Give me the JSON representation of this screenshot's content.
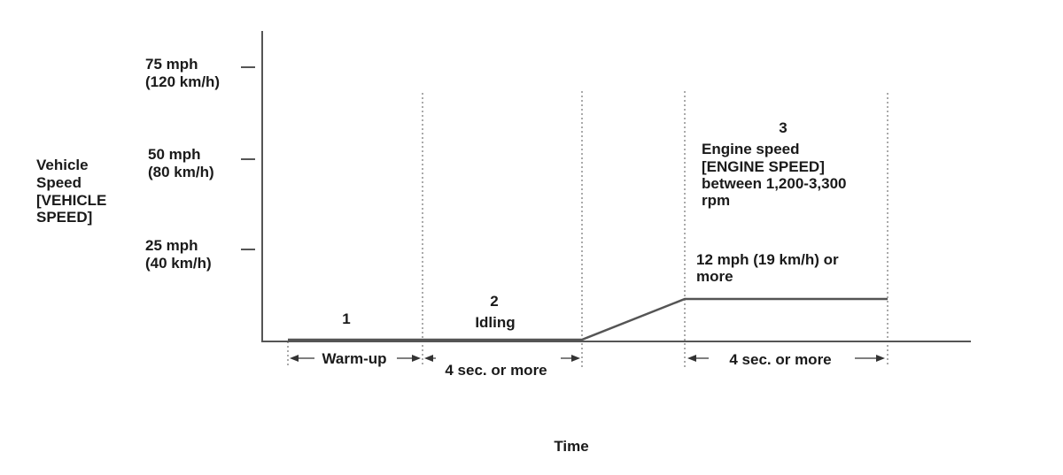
{
  "y_axis": {
    "label_lines": [
      "Vehicle",
      "Speed",
      "[VEHICLE",
      "SPEED]"
    ],
    "ticks": [
      {
        "line1": "75 mph",
        "line2": "(120 km/h)"
      },
      {
        "line1": "50 mph",
        "line2": "(80 km/h)"
      },
      {
        "line1": "25 mph",
        "line2": "(40 km/h)"
      }
    ]
  },
  "x_axis": {
    "label": "Time"
  },
  "phases": [
    {
      "number": "1",
      "name": "",
      "duration": "Warm-up"
    },
    {
      "number": "2",
      "name": "Idling",
      "duration": "4 sec. or more"
    },
    {
      "number": "3",
      "note_lines": [
        "Engine speed",
        "[ENGINE SPEED]",
        "between 1,200-3,300",
        "rpm"
      ],
      "duration": "4 sec. or more"
    }
  ],
  "target_speed_lines": [
    "12 mph (19 km/h) or",
    "more"
  ],
  "colors": {
    "axis": "#555555",
    "text": "#1a1a1a"
  }
}
